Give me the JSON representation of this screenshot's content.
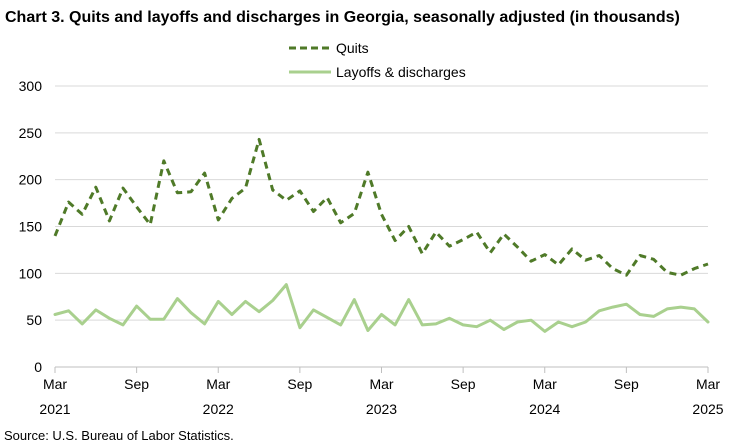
{
  "chart_data": {
    "type": "line",
    "title": "Chart 3. Quits and layoffs and discharges in Georgia, seasonally adjusted (in thousands)",
    "source": "Source: U.S. Bureau of Labor Statistics.",
    "xlabel": "",
    "ylabel": "",
    "ylim": [
      0,
      300
    ],
    "yticks": [
      0,
      50,
      100,
      150,
      200,
      250,
      300
    ],
    "grid": true,
    "legend_position": "top-center",
    "x_ticks": [
      {
        "index": 0,
        "month": "Mar",
        "year": "2021"
      },
      {
        "index": 6,
        "month": "Sep",
        "year": ""
      },
      {
        "index": 12,
        "month": "Mar",
        "year": "2022"
      },
      {
        "index": 18,
        "month": "Sep",
        "year": ""
      },
      {
        "index": 24,
        "month": "Mar",
        "year": "2023"
      },
      {
        "index": 30,
        "month": "Sep",
        "year": ""
      },
      {
        "index": 36,
        "month": "Mar",
        "year": "2024"
      },
      {
        "index": 42,
        "month": "Sep",
        "year": ""
      },
      {
        "index": 48,
        "month": "Mar",
        "year": "2025"
      }
    ],
    "series": [
      {
        "name": "Quits",
        "color": "#4f7a28",
        "style": "dashed",
        "values": [
          140,
          176,
          163,
          192,
          156,
          191,
          171,
          152,
          220,
          186,
          187,
          207,
          157,
          180,
          191,
          243,
          189,
          178,
          188,
          166,
          181,
          154,
          164,
          208,
          163,
          135,
          150,
          121,
          144,
          129,
          136,
          144,
          122,
          142,
          128,
          113,
          120,
          109,
          126,
          114,
          119,
          105,
          98,
          119,
          115,
          101,
          98,
          105,
          110
        ]
      },
      {
        "name": "Layoffs & discharges",
        "color": "#a9d08e",
        "style": "solid",
        "values": [
          56,
          60,
          46,
          61,
          52,
          45,
          65,
          51,
          51,
          73,
          58,
          46,
          70,
          56,
          70,
          59,
          71,
          88,
          42,
          61,
          53,
          45,
          72,
          39,
          56,
          45,
          72,
          45,
          46,
          52,
          45,
          43,
          50,
          40,
          48,
          50,
          38,
          48,
          43,
          48,
          60,
          64,
          67,
          56,
          54,
          62,
          64,
          62,
          48
        ]
      }
    ]
  }
}
